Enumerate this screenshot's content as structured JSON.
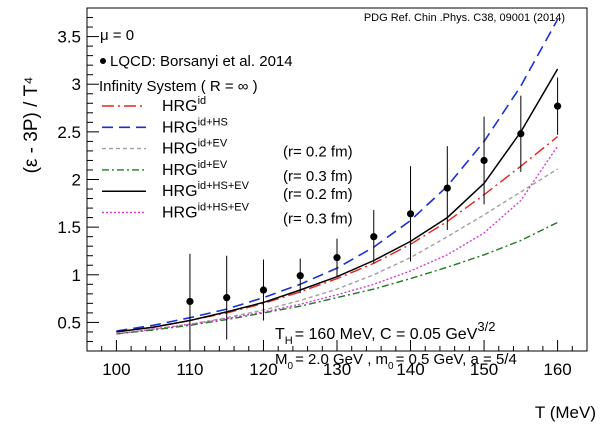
{
  "chart_data": {
    "type": "line",
    "ylabel": "(ε - 3P) / T⁴",
    "xlabel": "T (MeV)",
    "xlim": [
      96,
      164
    ],
    "ylim": [
      0.2,
      3.8
    ],
    "x_ticks": [
      100,
      110,
      120,
      130,
      140,
      150,
      160
    ],
    "y_ticks": [
      0.5,
      1,
      1.5,
      2,
      2.5,
      3,
      3.5
    ],
    "x_tick_labels": [
      "100",
      "110",
      "120",
      "130",
      "140",
      "150",
      "160"
    ],
    "y_tick_labels": [
      "0.5",
      "1",
      "1.5",
      "2",
      "2.5",
      "3",
      "3.5"
    ],
    "top_note": "PDG Ref. Chin .Phys. C38, 09001 (2014)",
    "annotations": {
      "mu": "μ = 0",
      "lqcd_label": "LQCD: Borsanyi et al. 2014",
      "system": "Infinity System  ( R = ∞ )",
      "params_line1_a": "T",
      "params_line1_b": "H",
      "params_line1_c": "= 160 MeV, C = 0.05 GeV",
      "params_line1_d": "3/2",
      "params_line2_a": "M",
      "params_line2_b": "0",
      "params_line2_c": "= 2.0 GeV , m",
      "params_line2_d": "0",
      "params_line2_e": "= 0.5 GeV, a = 5/4"
    },
    "legend": [
      {
        "base": "HRG",
        "sup": "id",
        "extra": "",
        "color": "#e8231c",
        "dash": "12,4,2,4",
        "width": 1.4
      },
      {
        "base": "HRG",
        "sup": "id+HS",
        "extra": "",
        "color": "#1a2fd6",
        "dash": "11,6",
        "width": 1.6
      },
      {
        "base": "HRG",
        "sup": "id+EV",
        "extra": "(r= 0.2 fm)",
        "color": "#a0a0a0",
        "dash": "4,3",
        "width": 1.4
      },
      {
        "base": "HRG",
        "sup": "id+EV",
        "extra": "(r= 0.3 fm)",
        "color": "#1f7a1f",
        "dash": "7,3,2,3",
        "width": 1.4
      },
      {
        "base": "HRG",
        "sup": "id+HS+EV",
        "extra": "(r= 0.2 fm)",
        "color": "#000000",
        "dash": "",
        "width": 1.5
      },
      {
        "base": "HRG",
        "sup": "id+HS+EV",
        "extra": "(r= 0.3 fm)",
        "color": "#d43fd4",
        "dash": "2,2",
        "width": 1.4
      }
    ],
    "series": [
      {
        "x": [
          100,
          105,
          110,
          115,
          120,
          125,
          130,
          135,
          140,
          145,
          150,
          155,
          160
        ],
        "values": [
          0.4,
          0.45,
          0.52,
          0.6,
          0.7,
          0.82,
          0.96,
          1.12,
          1.32,
          1.56,
          1.84,
          2.14,
          2.45
        ]
      },
      {
        "x": [
          100,
          105,
          110,
          115,
          120,
          125,
          130,
          135,
          140,
          145,
          150,
          155,
          160
        ],
        "values": [
          0.41,
          0.47,
          0.55,
          0.64,
          0.76,
          0.9,
          1.07,
          1.29,
          1.57,
          1.93,
          2.4,
          2.98,
          3.68
        ]
      },
      {
        "x": [
          100,
          105,
          110,
          115,
          120,
          125,
          130,
          135,
          140,
          145,
          150,
          155,
          160
        ],
        "values": [
          0.38,
          0.43,
          0.48,
          0.55,
          0.63,
          0.73,
          0.85,
          1.0,
          1.18,
          1.4,
          1.63,
          1.87,
          2.11
        ]
      },
      {
        "x": [
          100,
          105,
          110,
          115,
          120,
          125,
          130,
          135,
          140,
          145,
          150,
          155,
          160
        ],
        "values": [
          0.38,
          0.42,
          0.47,
          0.53,
          0.6,
          0.67,
          0.76,
          0.85,
          0.96,
          1.08,
          1.21,
          1.36,
          1.55
        ]
      },
      {
        "x": [
          100,
          105,
          110,
          115,
          120,
          125,
          130,
          135,
          140,
          145,
          150,
          155,
          160
        ],
        "values": [
          0.4,
          0.45,
          0.52,
          0.61,
          0.71,
          0.84,
          0.98,
          1.15,
          1.35,
          1.6,
          1.96,
          2.5,
          3.16
        ]
      },
      {
        "x": [
          100,
          105,
          110,
          115,
          120,
          125,
          130,
          135,
          140,
          145,
          150,
          155,
          160
        ],
        "values": [
          0.38,
          0.43,
          0.48,
          0.54,
          0.61,
          0.69,
          0.79,
          0.9,
          1.04,
          1.21,
          1.44,
          1.78,
          2.35
        ]
      }
    ],
    "lqcd": {
      "x": [
        110,
        115,
        120,
        125,
        130,
        135,
        140,
        145,
        150,
        155,
        160
      ],
      "y": [
        0.72,
        0.76,
        0.84,
        0.99,
        1.18,
        1.4,
        1.64,
        1.91,
        2.2,
        2.48,
        2.77
      ],
      "err": [
        0.5,
        0.44,
        0.32,
        0.18,
        0.2,
        0.28,
        0.5,
        0.44,
        0.46,
        0.4,
        0.3
      ]
    }
  }
}
